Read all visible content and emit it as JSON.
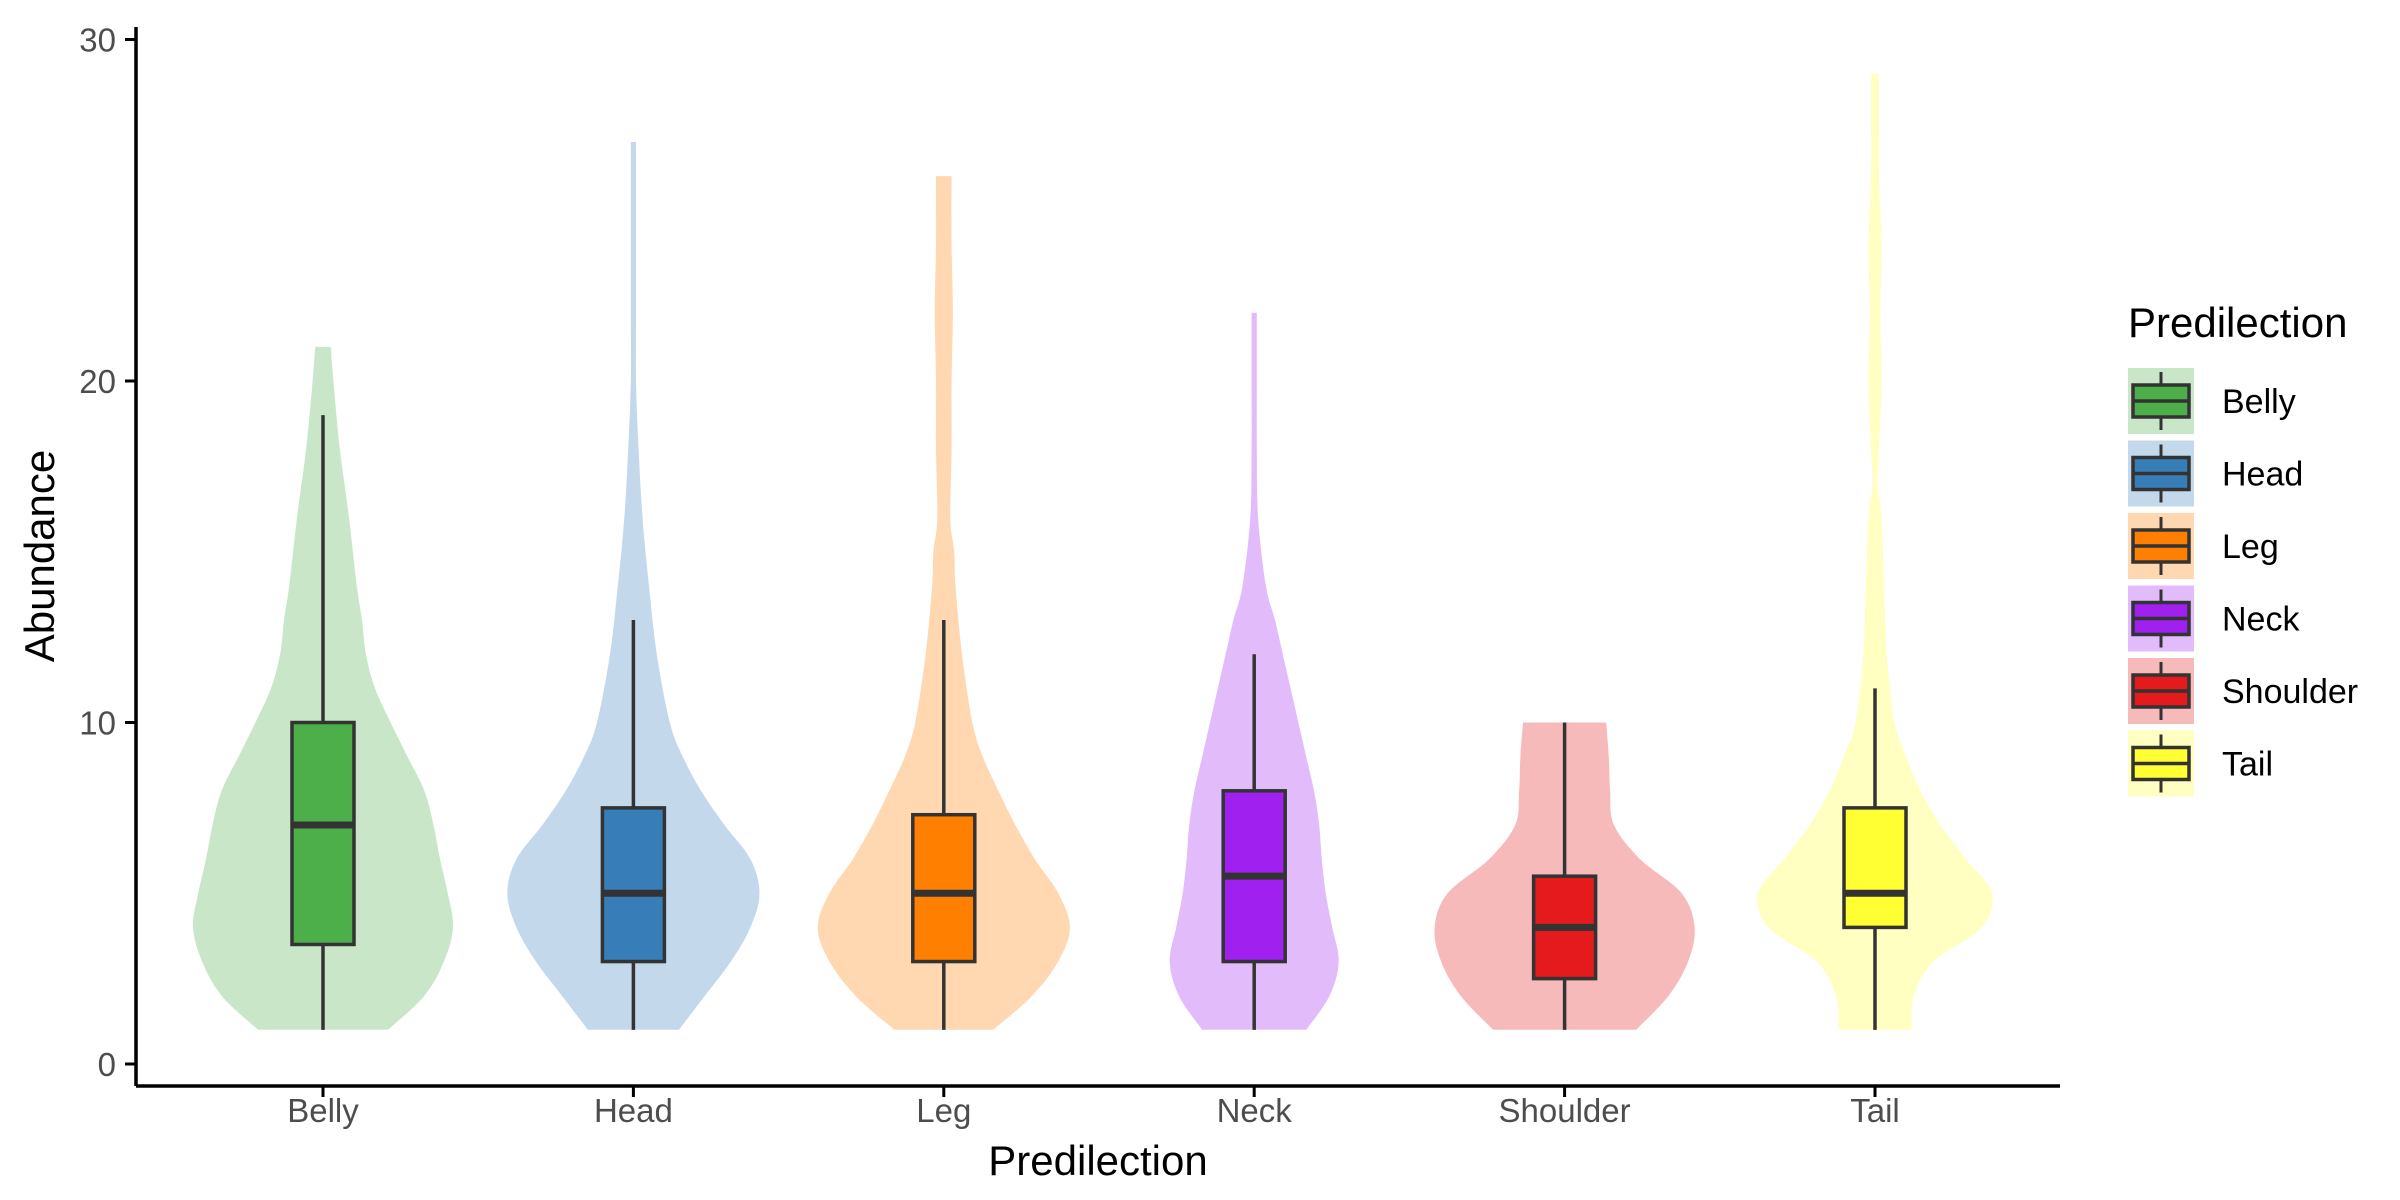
{
  "chart_data": {
    "type": "violin",
    "title": "",
    "xlabel": "Predilection",
    "ylabel": "Abundance",
    "ylim": [
      0,
      30
    ],
    "yticks": [
      0,
      10,
      20,
      30
    ],
    "grid": false,
    "legend": {
      "title": "Predilection",
      "position": "right"
    },
    "categories": [
      "Belly",
      "Head",
      "Leg",
      "Neck",
      "Shoulder",
      "Tail"
    ],
    "groups": [
      {
        "name": "Belly",
        "color": "#4DAF4A",
        "min": 1,
        "max": 21,
        "box": {
          "lower_whisker": 1,
          "q1": 3.5,
          "median": 7,
          "q3": 10,
          "upper_whisker": 19
        },
        "density": [
          [
            1,
            0.5
          ],
          [
            2,
            0.78
          ],
          [
            3,
            0.93
          ],
          [
            4,
            1.0
          ],
          [
            5,
            0.96
          ],
          [
            6,
            0.9
          ],
          [
            7,
            0.85
          ],
          [
            8,
            0.78
          ],
          [
            9,
            0.65
          ],
          [
            10,
            0.52
          ],
          [
            11,
            0.4
          ],
          [
            12,
            0.33
          ],
          [
            13,
            0.3
          ],
          [
            14,
            0.26
          ],
          [
            16,
            0.2
          ],
          [
            18,
            0.13
          ],
          [
            20,
            0.08
          ],
          [
            21,
            0.06
          ]
        ]
      },
      {
        "name": "Head",
        "color": "#377EB8",
        "min": 1,
        "max": 27,
        "box": {
          "lower_whisker": 1,
          "q1": 3,
          "median": 5,
          "q3": 7.5,
          "upper_whisker": 13
        },
        "density": [
          [
            1,
            0.35
          ],
          [
            2,
            0.55
          ],
          [
            3,
            0.75
          ],
          [
            4,
            0.9
          ],
          [
            5,
            0.97
          ],
          [
            6,
            0.9
          ],
          [
            7,
            0.7
          ],
          [
            8,
            0.52
          ],
          [
            9,
            0.38
          ],
          [
            10,
            0.28
          ],
          [
            12,
            0.18
          ],
          [
            14,
            0.12
          ],
          [
            16,
            0.07
          ],
          [
            18,
            0.04
          ],
          [
            20,
            0.02
          ],
          [
            22,
            0.02
          ],
          [
            24,
            0.02
          ],
          [
            27,
            0.02
          ]
        ]
      },
      {
        "name": "Leg",
        "color": "#FF7F00",
        "min": 1,
        "max": 26,
        "box": {
          "lower_whisker": 1,
          "q1": 3,
          "median": 5,
          "q3": 7.3,
          "upper_whisker": 13
        },
        "density": [
          [
            1,
            0.38
          ],
          [
            2,
            0.68
          ],
          [
            3,
            0.88
          ],
          [
            4,
            0.97
          ],
          [
            5,
            0.88
          ],
          [
            6,
            0.7
          ],
          [
            7,
            0.55
          ],
          [
            8,
            0.42
          ],
          [
            9,
            0.3
          ],
          [
            10,
            0.22
          ],
          [
            12,
            0.14
          ],
          [
            14,
            0.09
          ],
          [
            15,
            0.08
          ],
          [
            16,
            0.05
          ],
          [
            18,
            0.06
          ],
          [
            20,
            0.06
          ],
          [
            22,
            0.07
          ],
          [
            24,
            0.06
          ],
          [
            26,
            0.06
          ]
        ]
      },
      {
        "name": "Neck",
        "color": "#A020F0",
        "min": 1,
        "max": 22,
        "box": {
          "lower_whisker": 1,
          "q1": 3,
          "median": 5.5,
          "q3": 8,
          "upper_whisker": 12
        },
        "density": [
          [
            1,
            0.4
          ],
          [
            2,
            0.58
          ],
          [
            3,
            0.65
          ],
          [
            4,
            0.6
          ],
          [
            5,
            0.55
          ],
          [
            6,
            0.52
          ],
          [
            7,
            0.5
          ],
          [
            8,
            0.46
          ],
          [
            9,
            0.4
          ],
          [
            10,
            0.34
          ],
          [
            11,
            0.28
          ],
          [
            12,
            0.22
          ],
          [
            13,
            0.16
          ],
          [
            14,
            0.09
          ],
          [
            16,
            0.03
          ],
          [
            18,
            0.02
          ],
          [
            20,
            0.02
          ],
          [
            22,
            0.02
          ]
        ]
      },
      {
        "name": "Shoulder",
        "color": "#E41A1C",
        "min": 1,
        "max": 10,
        "box": {
          "lower_whisker": 1,
          "q1": 2.5,
          "median": 4,
          "q3": 5.5,
          "upper_whisker": 10
        },
        "density": [
          [
            1,
            0.55
          ],
          [
            2,
            0.8
          ],
          [
            3,
            0.95
          ],
          [
            4,
            1.0
          ],
          [
            5,
            0.9
          ],
          [
            6,
            0.58
          ],
          [
            7,
            0.38
          ],
          [
            8,
            0.35
          ],
          [
            9,
            0.34
          ],
          [
            10,
            0.32
          ]
        ]
      },
      {
        "name": "Tail",
        "color": "#FFFF33",
        "min": 1,
        "max": 29,
        "box": {
          "lower_whisker": 1,
          "q1": 4,
          "median": 5,
          "q3": 7.5,
          "upper_whisker": 11
        },
        "density": [
          [
            1,
            0.28
          ],
          [
            2,
            0.3
          ],
          [
            3,
            0.45
          ],
          [
            4,
            0.82
          ],
          [
            5,
            0.9
          ],
          [
            6,
            0.7
          ],
          [
            7,
            0.5
          ],
          [
            8,
            0.35
          ],
          [
            9,
            0.24
          ],
          [
            10,
            0.15
          ],
          [
            12,
            0.09
          ],
          [
            14,
            0.07
          ],
          [
            16,
            0.05
          ],
          [
            17,
            0.02
          ],
          [
            18,
            0.03
          ],
          [
            20,
            0.05
          ],
          [
            22,
            0.04
          ],
          [
            24,
            0.05
          ],
          [
            26,
            0.03
          ],
          [
            28,
            0.03
          ],
          [
            29,
            0.03
          ]
        ]
      }
    ]
  }
}
